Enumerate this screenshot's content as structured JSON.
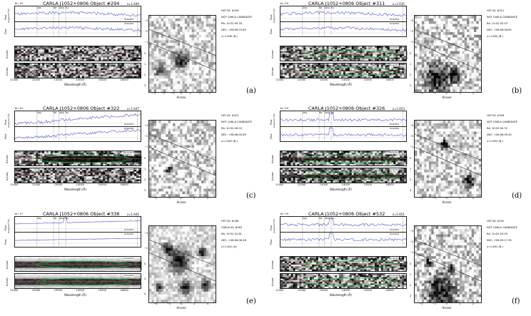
{
  "common": {
    "wavelength_label": "Wavelength (Å)",
    "flux_label": "Flux",
    "flux_unit": "[erg/s/cm²/Å]",
    "arcsec_label": "Arcsec",
    "wl_ticks": [
      "11000",
      "12000",
      "13000",
      "14000",
      "15000",
      "16000"
    ],
    "line_labels": [
      "[OII]",
      "Hβ",
      "[OIII]",
      "Hα"
    ],
    "orient1": "Orient01",
    "orient2": "Orient02"
  },
  "panels": [
    {
      "id": "a",
      "letter": "(a)",
      "title": "CARLA J1052+0806 Object #294",
      "z": "z=1.649",
      "sci": "1e−19",
      "info": [
        "HST ID: #294",
        "NOT CARLA CANDIDATE",
        "RA: 10:52:30.78",
        "DEC: +08:06:25.89",
        "z=1.649 (B-)"
      ],
      "cut_x_ticks": [
        "−3",
        "−2",
        "−1",
        "0",
        "1",
        "2",
        "3"
      ],
      "cut_y_ticks": [
        "−3",
        "−2",
        "−1",
        "0",
        "1",
        "2",
        "3"
      ]
    },
    {
      "id": "b",
      "letter": "(b)",
      "title": "CARLA J1052+0806 Object #311",
      "z": "z=1.635",
      "sci": "1e−19",
      "info": [
        "HST ID: #311",
        "NOT CARLA CANDIDATE",
        "RA: 10:52:30.53",
        "DEC: +08:06:56.85",
        "z=1.635 (B-)"
      ],
      "cut_x_ticks": [
        "−2",
        "−1",
        "0",
        "1",
        "2"
      ],
      "cut_y_ticks": [
        "−3",
        "−2",
        "−1",
        "0",
        "1",
        "2",
        "3"
      ]
    },
    {
      "id": "c",
      "letter": "(c)",
      "title": "CARLA J1052+0806 Object #322",
      "z": "z=1.647",
      "sci": "1e−19",
      "info": [
        "HST ID: #322",
        "NOT CARLA CANDIDATE",
        "RA: 10:52:30.03",
        "DEC: +08:06:00.89",
        "z=1.647 (B-)"
      ],
      "cut_x_ticks": [
        "−2",
        "−1",
        "0",
        "1",
        "2"
      ],
      "cut_y_ticks": [
        "−3",
        "−2",
        "−1",
        "0",
        "1",
        "2",
        "3"
      ]
    },
    {
      "id": "d",
      "letter": "(d)",
      "title": "CARLA J1052+0806 Object #326",
      "z": "z=1.653",
      "sci": "1e−19",
      "info": [
        "HST ID: #326",
        "NOT CARLA CANDIDATE",
        "RA: 10:52:30.70",
        "DEC: +08:06:05.45",
        "z=1.653 (B-)"
      ],
      "cut_x_ticks": [
        "−2",
        "−1",
        "0",
        "1",
        "2"
      ],
      "cut_y_ticks": [
        "−3",
        "−2",
        "−1",
        "0",
        "1",
        "2",
        "3"
      ]
    },
    {
      "id": "e",
      "letter": "(e)",
      "title": "CARLA J1052+0806 Object #338",
      "z": "z=1.641",
      "sci": "1e−17",
      "info": [
        "HST ID: #338",
        "CARLA ID: #283",
        "RA: 10:52:31.81",
        "DEC: +08:06:06.36",
        "z=1.641 (A)"
      ],
      "cut_x_ticks": [
        "−4",
        "−2",
        "0",
        "2",
        "4"
      ],
      "cut_y_ticks": [
        "−4",
        "−2",
        "0",
        "2",
        "4"
      ]
    },
    {
      "id": "f",
      "letter": "(f)",
      "title": "CARLA J1052+0806 Object #532",
      "z": "z=1.651",
      "sci": "1e−19",
      "info": [
        "HST ID: #532",
        "NOT CARLA CANDIDATE",
        "RA: 10:52:29.29",
        "DEC: +08:05:17.95",
        "z=1.651 (B-)"
      ],
      "cut_x_ticks": [
        "−2",
        "−1",
        "0",
        "1",
        "2"
      ],
      "cut_y_ticks": [
        "−3",
        "−2",
        "−1",
        "0",
        "1",
        "2",
        "3"
      ]
    }
  ]
}
